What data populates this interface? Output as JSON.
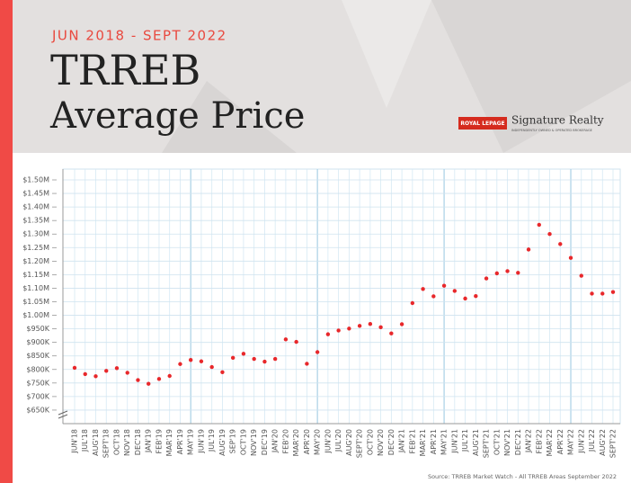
{
  "chart_data": {
    "type": "scatter",
    "subtitle": "JUN 2018 - SEPT 2022",
    "title": [
      "TRREB",
      "Average Price"
    ],
    "logo": {
      "brand": "ROYAL LEPAGE",
      "name": "Signature Realty",
      "tagline": "INDEPENDENTLY OWNED & OPERATED BROKERAGE"
    },
    "source": "Source: TRREB Market Watch - All TRREB Areas September 2022",
    "color": "#e8282b",
    "grid": true,
    "categories": [
      "JUN'18",
      "JUL'18",
      "AUG'18",
      "SEPT'18",
      "OCT'18",
      "NOV'18",
      "DEC'18",
      "JAN'19",
      "FEB'19",
      "MAR'19",
      "APR'19",
      "MAY'19",
      "JUN'19",
      "JUL'19",
      "AUG'19",
      "SEP'19",
      "OCT'19",
      "NOV'19",
      "DEC'19",
      "JAN'20",
      "FEB'20",
      "MAR'20",
      "APR'20",
      "MAY'20",
      "JUN'20",
      "JUL'20",
      "AUG'20",
      "SEPT'20",
      "OCT'20",
      "NOV'20",
      "DEC'20",
      "JAN'21",
      "FEB'21",
      "MAR'21",
      "APR'21",
      "MAY'21",
      "JUN'21",
      "JUL'21",
      "AUG'21",
      "SEPT'21",
      "OCT'21",
      "NOV'21",
      "DEC'21",
      "JAN'22",
      "FEB'22",
      "MAR'22",
      "APR'22",
      "MAY'22",
      "JUN'22",
      "JUL'22",
      "AUG'22",
      "SEPT'22"
    ],
    "values": [
      806000,
      783000,
      775000,
      795000,
      805000,
      788000,
      761000,
      747000,
      765000,
      776000,
      820000,
      835000,
      830000,
      809000,
      790000,
      843000,
      858000,
      839000,
      829000,
      839000,
      911000,
      902000,
      821000,
      864000,
      930000,
      944000,
      951000,
      961000,
      968000,
      956000,
      933000,
      967000,
      1045000,
      1097000,
      1070000,
      1109000,
      1090000,
      1062000,
      1071000,
      1136000,
      1155000,
      1163000,
      1157000,
      1243000,
      1334000,
      1300000,
      1263000,
      1212000,
      1146000,
      1080000,
      1080000,
      1086000
    ],
    "ylim": [
      600000,
      1500000
    ],
    "yticks": [
      {
        "value": 650000,
        "label": "$650K"
      },
      {
        "value": 700000,
        "label": "$700K"
      },
      {
        "value": 750000,
        "label": "$750K"
      },
      {
        "value": 800000,
        "label": "$800K"
      },
      {
        "value": 850000,
        "label": "$850K"
      },
      {
        "value": 900000,
        "label": "$900K"
      },
      {
        "value": 950000,
        "label": "$950K"
      },
      {
        "value": 1000000,
        "label": "$1.00M"
      },
      {
        "value": 1050000,
        "label": "$1.05M"
      },
      {
        "value": 1100000,
        "label": "$1.10M"
      },
      {
        "value": 1150000,
        "label": "$1.15M"
      },
      {
        "value": 1200000,
        "label": "$1.20M"
      },
      {
        "value": 1250000,
        "label": "$1.25M"
      },
      {
        "value": 1300000,
        "label": "$1.30M"
      },
      {
        "value": 1350000,
        "label": "$1.35M"
      },
      {
        "value": 1400000,
        "label": "$1.40M"
      },
      {
        "value": 1450000,
        "label": "$1.45M"
      },
      {
        "value": 1500000,
        "label": "$1.50M"
      }
    ]
  }
}
